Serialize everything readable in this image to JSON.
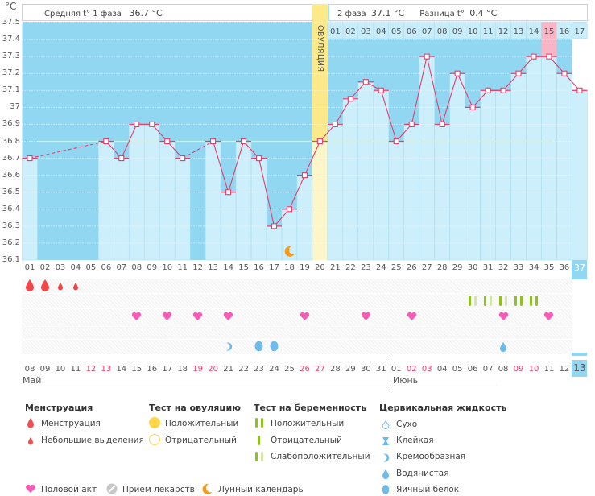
{
  "header": {
    "unit": "°C",
    "phase1_label": "Средняя t° 1 фаза",
    "phase1_value": "36.7 °C",
    "phase2_label": "2 фаза",
    "phase2_value": "37.1 °C",
    "diff_label": "Разница t°",
    "diff_value": "0.4 °C",
    "ovulation_label": "ОВУЛЯЦИЯ",
    "phase2_days": [
      "01",
      "02",
      "03",
      "04",
      "05",
      "06",
      "07",
      "08",
      "09",
      "10",
      "11",
      "12",
      "13",
      "14",
      "15",
      "16",
      "17"
    ],
    "highlight_phase2_day": "15"
  },
  "colors": {
    "plot_bg": "#92d7f2",
    "bar": "#cdeefb",
    "line": "#e83c6a",
    "coverline": "#f5ee8c",
    "ovulation": "#fbe98a",
    "ovulation_light": "#fdf6c9",
    "highlight": "#f7b5c6",
    "weekend": "#e83c6a",
    "today": "#92d7f2"
  },
  "chart_data": {
    "type": "line",
    "title": "",
    "ylabel": "°C",
    "ylim": [
      36.1,
      37.5
    ],
    "yticks": [
      "37.5",
      "37.4",
      "37.3",
      "37.2",
      "37.1",
      "37",
      "36.9",
      "36.8",
      "36.7",
      "36.6",
      "36.5",
      "36.4",
      "36.3",
      "36.2",
      "36.1"
    ],
    "x": [
      "01",
      "02",
      "03",
      "04",
      "05",
      "06",
      "07",
      "08",
      "09",
      "10",
      "11",
      "12",
      "13",
      "14",
      "15",
      "16",
      "17",
      "18",
      "19",
      "20",
      "21",
      "22",
      "23",
      "24",
      "25",
      "26",
      "27",
      "28",
      "29",
      "30",
      "31",
      "32",
      "33",
      "34",
      "35",
      "36",
      "37"
    ],
    "series": [
      {
        "name": "Базальная температура",
        "values": [
          36.7,
          null,
          null,
          null,
          null,
          36.8,
          36.7,
          36.9,
          36.9,
          36.8,
          36.7,
          null,
          36.8,
          36.5,
          36.8,
          36.7,
          36.3,
          36.4,
          36.6,
          36.8,
          36.9,
          37.05,
          37.15,
          37.1,
          36.8,
          36.9,
          37.3,
          36.9,
          37.2,
          37.0,
          37.1,
          37.1,
          37.2,
          37.3,
          37.3,
          37.2,
          37.1
        ]
      }
    ],
    "coverline": 36.8,
    "ovulation_day": 20,
    "current_day": "37"
  },
  "dates": {
    "items": [
      "08",
      "09",
      "10",
      "11",
      "12",
      "13",
      "14",
      "15",
      "16",
      "17",
      "18",
      "19",
      "20",
      "21",
      "22",
      "23",
      "24",
      "25",
      "26",
      "27",
      "28",
      "29",
      "30",
      "31",
      "01",
      "02",
      "03",
      "04",
      "05",
      "06",
      "07",
      "08",
      "09",
      "10",
      "11",
      "12",
      "13"
    ],
    "red": [
      4,
      5,
      11,
      12,
      18,
      19,
      25,
      26,
      32,
      33
    ],
    "month1": "Май",
    "month2": "Июнь",
    "month2_start_index": 25
  },
  "markers": {
    "menstruation": [
      {
        "day": 1,
        "type": "big"
      },
      {
        "day": 2,
        "type": "big"
      },
      {
        "day": 3,
        "type": "small"
      },
      {
        "day": 4,
        "type": "small"
      }
    ],
    "pregnancy_tests": [
      {
        "day": 30,
        "type": "weak"
      },
      {
        "day": 31,
        "type": "weak"
      },
      {
        "day": 32,
        "type": "weak"
      },
      {
        "day": 33,
        "type": "positive"
      },
      {
        "day": 34,
        "type": "positive"
      }
    ],
    "intercourse": [
      8,
      10,
      12,
      14,
      19,
      23,
      26,
      32,
      35
    ],
    "cervical": [
      {
        "day": 14,
        "type": "creamy"
      },
      {
        "day": 16,
        "type": "eggwhite"
      },
      {
        "day": 17,
        "type": "eggwhite"
      },
      {
        "day": 32,
        "type": "watery"
      }
    ],
    "moon": [
      18
    ]
  },
  "legend": {
    "menstruation": {
      "title": "Менструация",
      "items": [
        "Менструация",
        "Небольшие выделения"
      ]
    },
    "ovulation_test": {
      "title": "Тест на овуляцию",
      "items": [
        "Положительный",
        "Отрицательный"
      ]
    },
    "pregnancy_test": {
      "title": "Тест на беременность",
      "items": [
        "Положительный",
        "Отрицательный",
        "Слабоположительный"
      ]
    },
    "cervical": {
      "title": "Цервикальная жидкость",
      "items": [
        "Сухо",
        "Клейкая",
        "Кремообразная",
        "Водянистая",
        "Яичный белок"
      ]
    },
    "other": [
      "Половой акт",
      "Прием лекарств",
      "Лунный календарь"
    ]
  }
}
